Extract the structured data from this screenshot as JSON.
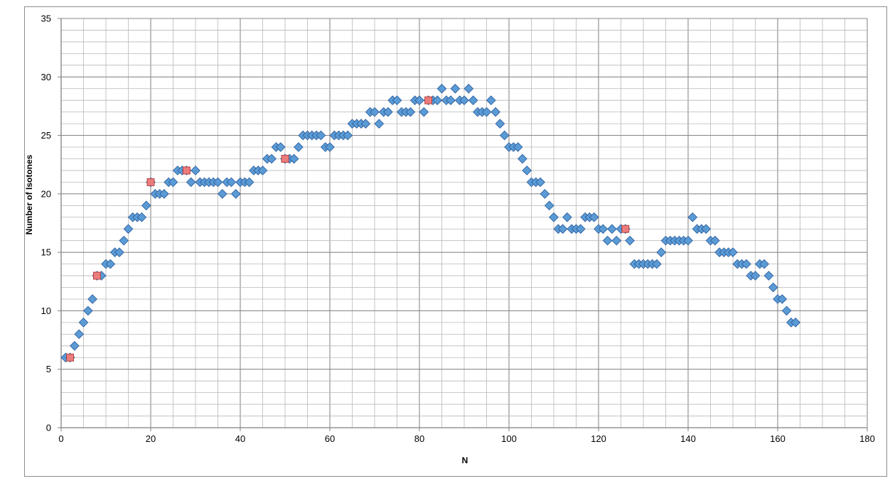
{
  "chart_data": {
    "type": "scatter",
    "title": "",
    "xlabel": "N",
    "ylabel": "Number of Isotones",
    "xlim": [
      0,
      180
    ],
    "ylim": [
      0,
      35
    ],
    "x_major_step": 20,
    "x_minor_step": 5,
    "y_major_step": 5,
    "y_minor_step": 1,
    "grid": true,
    "legend": "none",
    "series": [
      {
        "marker": "diamond",
        "color": "#5b9bd5",
        "x": [
          1,
          2,
          3,
          4,
          5,
          6,
          7,
          8,
          9,
          10,
          11,
          12,
          13,
          14,
          15,
          16,
          17,
          18,
          19,
          20,
          21,
          22,
          23,
          24,
          25,
          26,
          27,
          28,
          29,
          30,
          31,
          32,
          33,
          34,
          35,
          36,
          37,
          38,
          39,
          40,
          41,
          42,
          43,
          44,
          45,
          46,
          47,
          48,
          49,
          50,
          51,
          52,
          53,
          54,
          55,
          56,
          57,
          58,
          59,
          60,
          61,
          62,
          63,
          64,
          65,
          66,
          67,
          68,
          69,
          70,
          71,
          72,
          73,
          74,
          75,
          76,
          77,
          78,
          79,
          80,
          81,
          82,
          83,
          84,
          85,
          86,
          87,
          88,
          89,
          90,
          91,
          92,
          93,
          94,
          95,
          96,
          97,
          98,
          99,
          100,
          101,
          102,
          103,
          104,
          105,
          106,
          107,
          108,
          109,
          110,
          111,
          112,
          113,
          114,
          115,
          116,
          117,
          118,
          119,
          120,
          121,
          122,
          123,
          124,
          125,
          126,
          127,
          128,
          129,
          130,
          131,
          132,
          133,
          134,
          135,
          136,
          137,
          138,
          139,
          140,
          141,
          142,
          143,
          144,
          145,
          146,
          147,
          148,
          149,
          150,
          151,
          152,
          153,
          154,
          155,
          156,
          157,
          158,
          159,
          160,
          161,
          162,
          163,
          164
        ],
        "y": [
          6,
          6,
          7,
          8,
          9,
          10,
          11,
          13,
          13,
          14,
          14,
          15,
          15,
          16,
          17,
          18,
          18,
          18,
          19,
          21,
          20,
          20,
          20,
          21,
          21,
          22,
          22,
          22,
          21,
          22,
          21,
          21,
          21,
          21,
          21,
          20,
          21,
          21,
          20,
          21,
          21,
          21,
          22,
          22,
          22,
          23,
          23,
          24,
          24,
          23,
          23,
          23,
          24,
          25,
          25,
          25,
          25,
          25,
          24,
          24,
          25,
          25,
          25,
          25,
          26,
          26,
          26,
          26,
          27,
          27,
          26,
          27,
          27,
          28,
          28,
          27,
          27,
          27,
          28,
          28,
          27,
          28,
          28,
          28,
          29,
          28,
          28,
          29,
          28,
          28,
          29,
          28,
          27,
          27,
          27,
          28,
          27,
          26,
          25,
          24,
          24,
          24,
          23,
          22,
          21,
          21,
          21,
          20,
          19,
          18,
          17,
          17,
          18,
          17,
          17,
          17,
          18,
          18,
          18,
          17,
          17,
          16,
          17,
          16,
          17,
          17,
          16,
          14,
          14,
          14,
          14,
          14,
          14,
          15,
          16,
          16,
          16,
          16,
          16,
          16,
          18,
          17,
          17,
          17,
          16,
          16,
          15,
          15,
          15,
          15,
          14,
          14,
          14,
          13,
          13,
          14,
          14,
          13,
          12,
          11,
          11,
          10,
          9,
          9
        ]
      },
      {
        "marker": "square",
        "color": "#ec7c7c",
        "x": [
          2,
          8,
          20,
          28,
          50,
          82,
          126
        ],
        "y": [
          6,
          13,
          21,
          22,
          23,
          28,
          17
        ]
      }
    ]
  }
}
